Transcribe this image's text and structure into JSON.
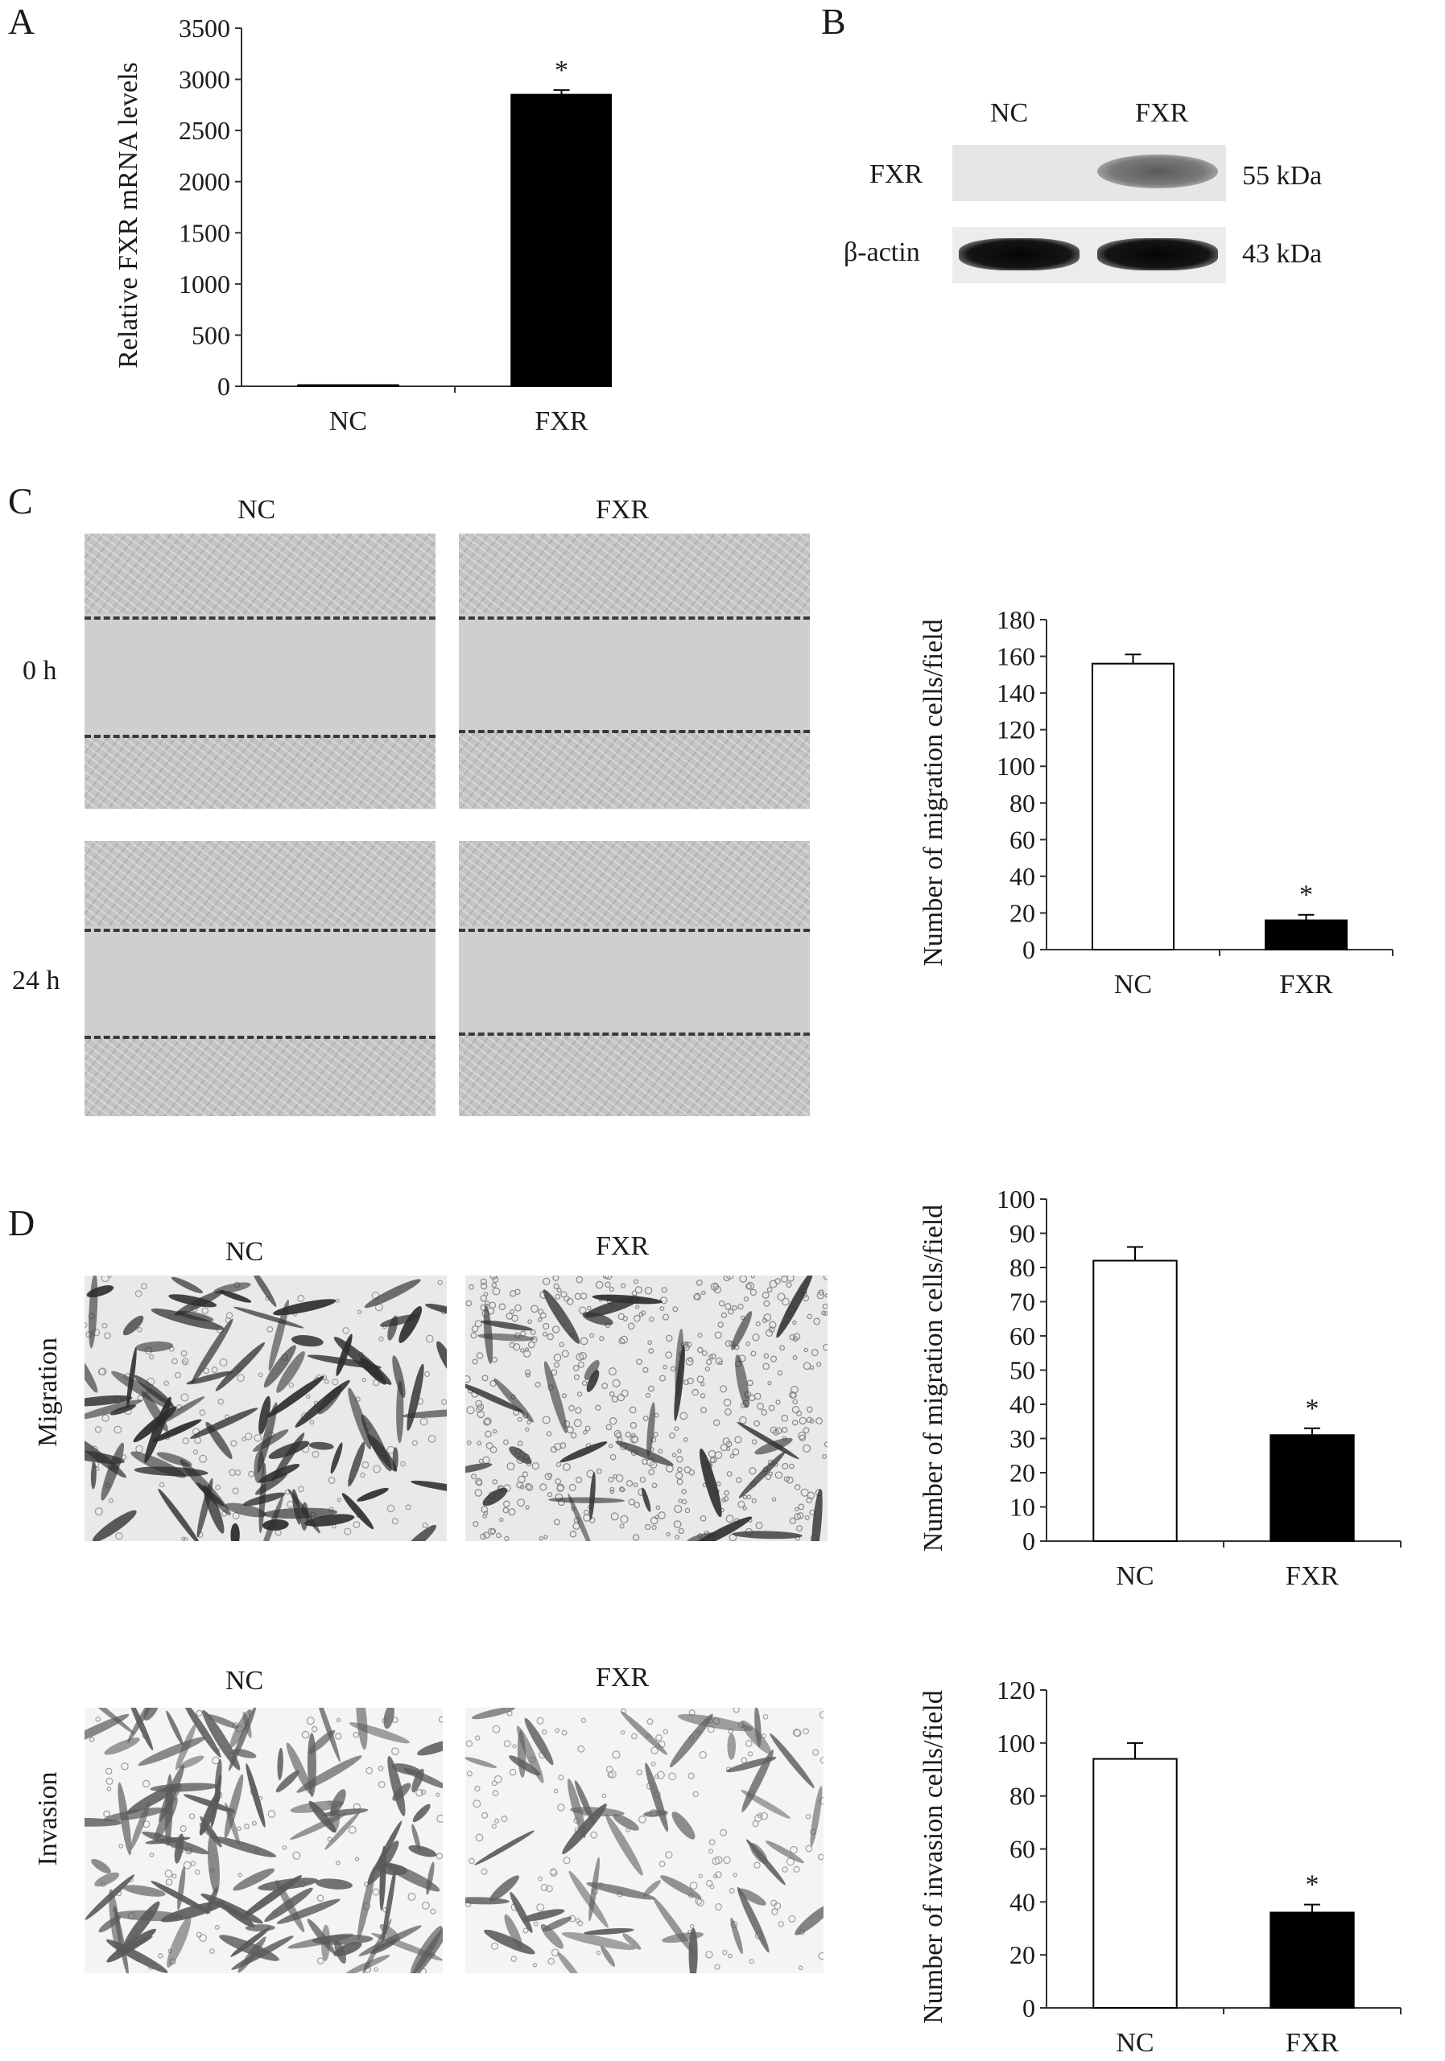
{
  "panels": {
    "A": {
      "letter": "A"
    },
    "B": {
      "letter": "B"
    },
    "C": {
      "letter": "C"
    },
    "D": {
      "letter": "D"
    }
  },
  "western_blot": {
    "lanes": [
      "NC",
      "FXR"
    ],
    "rows": [
      {
        "protein": "FXR",
        "size": "55 kDa"
      },
      {
        "protein": "β-actin",
        "size": "43 kDa"
      }
    ]
  },
  "scratch": {
    "headers": [
      "NC",
      "FXR"
    ],
    "times": [
      "0 h",
      "24 h"
    ]
  },
  "transwell": {
    "migration": {
      "label": "Migration",
      "headers": [
        "NC",
        "FXR"
      ]
    },
    "invasion": {
      "label": "Invasion",
      "headers": [
        "NC",
        "FXR"
      ]
    }
  },
  "chart_data": [
    {
      "id": "A",
      "type": "bar",
      "categories": [
        "NC",
        "FXR"
      ],
      "values": [
        1,
        2850
      ],
      "errors": [
        0,
        45
      ],
      "fills": [
        "#000000",
        "#000000"
      ],
      "significance": [
        "",
        "*"
      ],
      "ylabel": "Relative FXR mRNA levels",
      "ylim": [
        0,
        3500
      ],
      "yticks": [
        0,
        500,
        1000,
        1500,
        2000,
        2500,
        3000,
        3500
      ]
    },
    {
      "id": "C",
      "type": "bar",
      "categories": [
        "NC",
        "FXR"
      ],
      "values": [
        156,
        16
      ],
      "errors": [
        5,
        3
      ],
      "fills": [
        "#ffffff",
        "#000000"
      ],
      "significance": [
        "",
        "*"
      ],
      "ylabel": "Number of migration cells/field",
      "ylim": [
        0,
        180
      ],
      "yticks": [
        0,
        20,
        40,
        60,
        80,
        100,
        120,
        140,
        160,
        180
      ]
    },
    {
      "id": "D-migration",
      "type": "bar",
      "categories": [
        "NC",
        "FXR"
      ],
      "values": [
        82,
        31
      ],
      "errors": [
        4,
        2
      ],
      "fills": [
        "#ffffff",
        "#000000"
      ],
      "significance": [
        "",
        "*"
      ],
      "ylabel": "Number of migration cells/field",
      "ylim": [
        0,
        100
      ],
      "yticks": [
        0,
        10,
        20,
        30,
        40,
        50,
        60,
        70,
        80,
        90,
        100
      ]
    },
    {
      "id": "D-invasion",
      "type": "bar",
      "categories": [
        "NC",
        "FXR"
      ],
      "values": [
        94,
        36
      ],
      "errors": [
        6,
        3
      ],
      "fills": [
        "#ffffff",
        "#000000"
      ],
      "significance": [
        "",
        "*"
      ],
      "ylabel": "Number of invasion cells/field",
      "ylim": [
        0,
        120
      ],
      "yticks": [
        0,
        20,
        40,
        60,
        80,
        100,
        120
      ]
    }
  ]
}
